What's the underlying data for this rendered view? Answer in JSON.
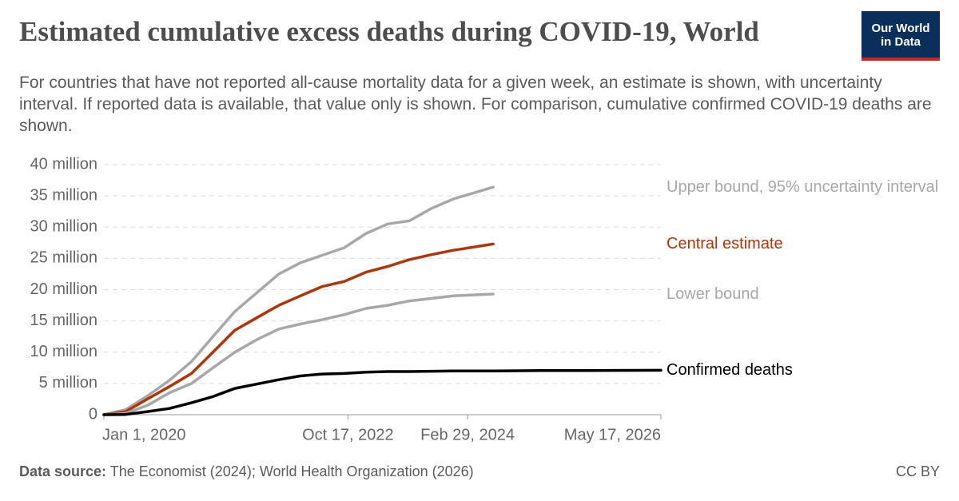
{
  "chart_data": {
    "type": "line",
    "title": "Estimated cumulative excess deaths during COVID-19, World",
    "subtitle": "For countries that have not reported all-cause mortality data for a given week, an estimate is shown, with uncertainty interval. If reported data is available, that value only is shown. For comparison, cumulative confirmed COVID-19 deaths are shown.",
    "logo": "Our World in Data",
    "source_label": "Data source:",
    "source": "The Economist (2024); World Health Organization (2026)",
    "license": "CC BY",
    "x": [
      "2020-01-01",
      "2020-04-01",
      "2020-07-01",
      "2020-10-01",
      "2021-01-01",
      "2021-04-01",
      "2021-07-01",
      "2021-10-01",
      "2022-01-01",
      "2022-04-01",
      "2022-07-01",
      "2022-10-01",
      "2023-01-01",
      "2023-04-01",
      "2023-07-01",
      "2023-10-01",
      "2024-01-01",
      "2024-06-15",
      "2025-01-01",
      "2025-07-01",
      "2026-05-17"
    ],
    "xlim": [
      "2020-01-01",
      "2026-05-17"
    ],
    "xticks": [
      {
        "value": "2020-01-01",
        "label": "Jan 1, 2020"
      },
      {
        "value": "2022-10-17",
        "label": "Oct 17, 2022"
      },
      {
        "value": "2024-02-29",
        "label": "Feb 29, 2024"
      },
      {
        "value": "2026-05-17",
        "label": "May 17, 2026"
      }
    ],
    "ylim": [
      0,
      40000000
    ],
    "yticks": [
      0,
      {
        "value": 5000000,
        "label": "5 million"
      },
      {
        "value": 10000000,
        "label": "10 million"
      },
      {
        "value": 15000000,
        "label": "15 million"
      },
      {
        "value": 20000000,
        "label": "20 million"
      },
      {
        "value": 25000000,
        "label": "25 million"
      },
      {
        "value": 30000000,
        "label": "30 million"
      },
      {
        "value": 35000000,
        "label": "35 million"
      },
      {
        "value": 40000000,
        "label": "40 million"
      }
    ],
    "grid": true,
    "series": [
      {
        "name": "Upper bound, 95% uncertainty interval",
        "color": "#a8a8a8",
        "values": [
          0,
          800000,
          3000000,
          5500000,
          8500000,
          12500000,
          16500000,
          19500000,
          22500000,
          24300000,
          25500000,
          26700000,
          29000000,
          30500000,
          31000000,
          33000000,
          34500000,
          36400000,
          null,
          null,
          null
        ]
      },
      {
        "name": "Central estimate",
        "color": "#b13507",
        "values": [
          0,
          500000,
          2500000,
          4500000,
          6600000,
          10000000,
          13500000,
          15500000,
          17500000,
          19000000,
          20500000,
          21300000,
          22800000,
          23700000,
          24800000,
          25600000,
          26300000,
          27300000,
          null,
          null,
          null
        ]
      },
      {
        "name": "Lower bound",
        "color": "#a8a8a8",
        "values": [
          0,
          200000,
          1500000,
          3500000,
          5000000,
          7500000,
          10000000,
          12000000,
          13700000,
          14500000,
          15200000,
          16000000,
          17000000,
          17500000,
          18200000,
          18600000,
          19000000,
          19300000,
          null,
          null,
          null
        ]
      },
      {
        "name": "Confirmed deaths",
        "color": "#000000",
        "values": [
          0,
          40000,
          500000,
          1000000,
          1900000,
          2900000,
          4200000,
          4900000,
          5600000,
          6200000,
          6500000,
          6600000,
          6800000,
          6900000,
          6900000,
          6950000,
          7000000,
          7000000,
          7050000,
          7070000,
          7100000
        ]
      }
    ]
  }
}
